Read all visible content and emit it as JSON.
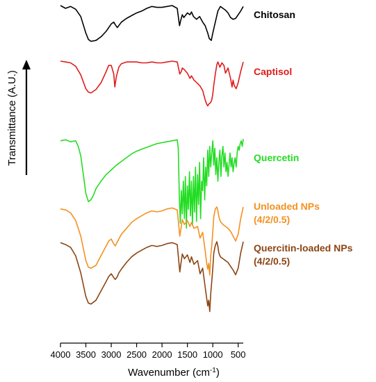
{
  "chart_data": {
    "type": "line",
    "title": "",
    "xlabel": "Wavenumber (cm",
    "xlabel_sup": "-1",
    "xlabel_end": ")",
    "ylabel": "Transmittance (A.U.)",
    "xlim": [
      4000,
      400
    ],
    "x_reversed": true,
    "xticks": [
      4000,
      3500,
      3000,
      2500,
      2000,
      1500,
      1000,
      500
    ],
    "ylim": [
      0,
      100
    ],
    "y_ticks_shown": false,
    "grid": false,
    "legend": "inline-right",
    "series": [
      {
        "name": "Chitosan",
        "label_lines": [
          "Chitosan"
        ],
        "color": "#000000",
        "x": [
          4000,
          3900,
          3800,
          3700,
          3600,
          3500,
          3450,
          3400,
          3300,
          3200,
          3100,
          3000,
          2950,
          2920,
          2880,
          2800,
          2700,
          2600,
          2500,
          2400,
          2300,
          2200,
          2100,
          2000,
          1900,
          1800,
          1700,
          1655,
          1630,
          1600,
          1570,
          1500,
          1450,
          1420,
          1380,
          1320,
          1260,
          1200,
          1150,
          1100,
          1070,
          1030,
          1000,
          950,
          900,
          850,
          800,
          750,
          700,
          650,
          600,
          550,
          500,
          450,
          400
        ],
        "y": [
          100,
          97,
          99,
          96,
          88,
          70,
          63,
          61,
          62,
          66,
          72,
          80,
          82,
          79,
          76,
          82,
          86,
          89,
          92,
          94,
          97,
          99,
          98,
          98,
          99,
          100,
          97,
          78,
          84,
          90,
          87,
          92,
          90,
          93,
          88,
          85,
          88,
          82,
          78,
          70,
          64,
          62,
          70,
          82,
          94,
          99,
          97,
          95,
          92,
          87,
          85,
          86,
          90,
          94,
          99
        ]
      },
      {
        "name": "Captisol",
        "label_lines": [
          "Captisol"
        ],
        "color": "#e01b1b",
        "x": [
          4000,
          3900,
          3800,
          3700,
          3600,
          3500,
          3450,
          3400,
          3300,
          3200,
          3100,
          3050,
          3000,
          2950,
          2930,
          2900,
          2850,
          2800,
          2700,
          2600,
          2500,
          2400,
          2300,
          2200,
          2100,
          2000,
          1900,
          1800,
          1700,
          1650,
          1620,
          1600,
          1560,
          1500,
          1450,
          1420,
          1370,
          1300,
          1250,
          1200,
          1150,
          1120,
          1100,
          1080,
          1040,
          1020,
          1000,
          980,
          950,
          920,
          900,
          860,
          820,
          780,
          750,
          700,
          650,
          620,
          600,
          580,
          540,
          500,
          450,
          400
        ],
        "y": [
          100,
          99,
          98,
          94,
          84,
          68,
          64,
          63,
          67,
          75,
          88,
          95,
          95,
          85,
          70,
          82,
          93,
          97,
          99,
          99,
          99,
          98,
          98,
          99,
          98,
          98,
          99,
          100,
          99,
          85,
          88,
          92,
          90,
          86,
          80,
          83,
          78,
          74,
          71,
          66,
          55,
          50,
          48,
          50,
          52,
          55,
          62,
          72,
          85,
          96,
          99,
          93,
          98,
          95,
          86,
          92,
          80,
          70,
          78,
          72,
          68,
          75,
          88,
          99
        ]
      },
      {
        "name": "Quercetin",
        "label_lines": [
          "Quercetin"
        ],
        "color": "#22dd22",
        "x": [
          4000,
          3900,
          3800,
          3700,
          3650,
          3600,
          3550,
          3500,
          3450,
          3400,
          3350,
          3300,
          3200,
          3100,
          3000,
          2900,
          2800,
          2700,
          2600,
          2500,
          2400,
          2300,
          2200,
          2100,
          2000,
          1900,
          1800,
          1700,
          1680,
          1660,
          1640,
          1620,
          1600,
          1580,
          1560,
          1540,
          1520,
          1500,
          1480,
          1460,
          1440,
          1420,
          1400,
          1380,
          1360,
          1340,
          1320,
          1300,
          1280,
          1260,
          1240,
          1220,
          1200,
          1180,
          1160,
          1140,
          1120,
          1100,
          1080,
          1060,
          1040,
          1020,
          1000,
          980,
          960,
          940,
          920,
          900,
          880,
          860,
          840,
          820,
          800,
          780,
          760,
          740,
          720,
          700,
          680,
          660,
          640,
          620,
          600,
          580,
          560,
          540,
          520,
          500,
          480,
          460,
          440,
          420,
          400
        ],
        "y": [
          98,
          99,
          97,
          98,
          92,
          82,
          62,
          42,
          33,
          35,
          40,
          47,
          55,
          62,
          67,
          72,
          76,
          80,
          84,
          87,
          89,
          91,
          93,
          95,
          96,
          97,
          98,
          99,
          90,
          40,
          10,
          45,
          20,
          55,
          15,
          60,
          5,
          50,
          25,
          65,
          18,
          55,
          8,
          60,
          22,
          70,
          12,
          62,
          30,
          75,
          15,
          55,
          45,
          80,
          35,
          70,
          50,
          88,
          60,
          92,
          70,
          85,
          98,
          72,
          90,
          62,
          80,
          55,
          75,
          88,
          60,
          82,
          92,
          70,
          85,
          65,
          75,
          60,
          72,
          85,
          70,
          80,
          65,
          75,
          80,
          70,
          85,
          92,
          88,
          95,
          98,
          92,
          100
        ]
      },
      {
        "name": "Unloaded NPs (4/2/0.5)",
        "label_lines": [
          "Unloaded NPs",
          "(4/2/0.5)"
        ],
        "color": "#f5901f",
        "x": [
          4000,
          3900,
          3800,
          3700,
          3600,
          3500,
          3450,
          3400,
          3300,
          3200,
          3100,
          3050,
          3000,
          2950,
          2920,
          2880,
          2850,
          2800,
          2700,
          2600,
          2500,
          2400,
          2300,
          2200,
          2100,
          2000,
          1900,
          1800,
          1700,
          1650,
          1620,
          1600,
          1560,
          1500,
          1450,
          1420,
          1370,
          1300,
          1250,
          1200,
          1150,
          1120,
          1100,
          1080,
          1060,
          1040,
          1020,
          1000,
          980,
          950,
          920,
          900,
          880,
          850,
          800,
          750,
          700,
          650,
          600,
          550,
          500,
          450,
          400
        ],
        "y": [
          98,
          97,
          94,
          86,
          70,
          45,
          38,
          37,
          40,
          50,
          60,
          65,
          67,
          62,
          60,
          64,
          67,
          72,
          78,
          84,
          88,
          91,
          94,
          96,
          95,
          96,
          98,
          99,
          97,
          70,
          80,
          87,
          82,
          86,
          80,
          84,
          78,
          80,
          68,
          74,
          55,
          42,
          36,
          42,
          30,
          50,
          60,
          75,
          90,
          98,
          100,
          96,
          90,
          85,
          82,
          80,
          78,
          75,
          70,
          65,
          72,
          88,
          100
        ]
      },
      {
        "name": "Quercitin-loaded NPs (4/2/0.5)",
        "label_lines": [
          "Quercitin-loaded  NPs",
          "(4/2/0.5)"
        ],
        "color": "#8b4513",
        "x": [
          4000,
          3900,
          3800,
          3700,
          3600,
          3500,
          3450,
          3400,
          3300,
          3200,
          3100,
          3050,
          3000,
          2950,
          2920,
          2880,
          2850,
          2800,
          2700,
          2600,
          2500,
          2400,
          2300,
          2200,
          2100,
          2000,
          1900,
          1800,
          1700,
          1650,
          1620,
          1600,
          1560,
          1500,
          1450,
          1420,
          1370,
          1300,
          1250,
          1200,
          1150,
          1120,
          1100,
          1080,
          1060,
          1040,
          1020,
          1000,
          980,
          950,
          920,
          900,
          880,
          850,
          800,
          750,
          700,
          650,
          600,
          550,
          500,
          450,
          400
        ],
        "y": [
          99,
          97,
          94,
          85,
          67,
          42,
          35,
          34,
          38,
          48,
          58,
          63,
          66,
          62,
          60,
          63,
          67,
          71,
          78,
          84,
          88,
          91,
          94,
          96,
          95,
          96,
          98,
          99,
          97,
          68,
          80,
          87,
          82,
          86,
          78,
          84,
          76,
          80,
          66,
          72,
          52,
          40,
          32,
          38,
          26,
          45,
          58,
          72,
          88,
          96,
          100,
          95,
          88,
          84,
          82,
          80,
          78,
          74,
          70,
          65,
          72,
          88,
          100
        ]
      }
    ]
  },
  "page": {
    "xlabel_main": "Wavenumber (cm",
    "xlabel_sup": "-1",
    "xlabel_end": ")",
    "ylabel": "Transmittance (A.U.)"
  }
}
